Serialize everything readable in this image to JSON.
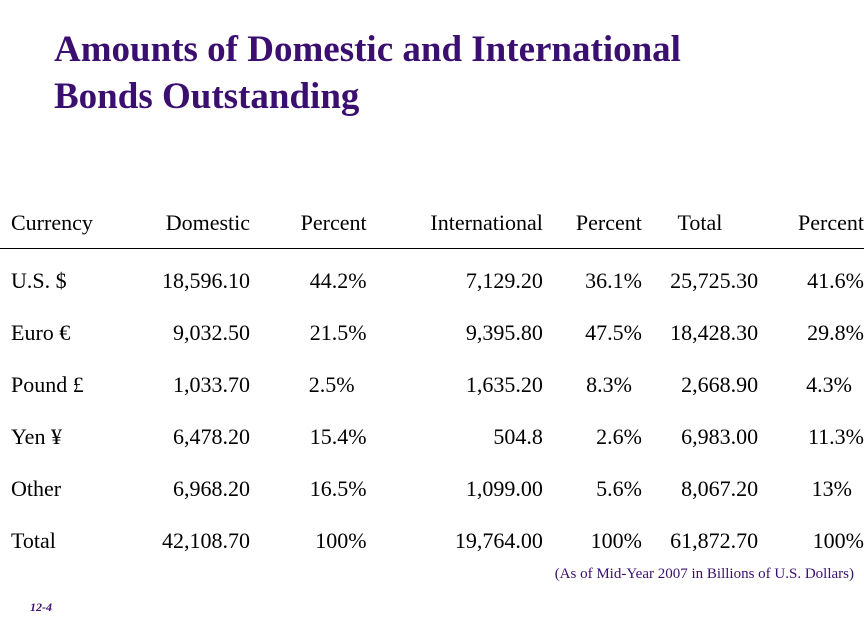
{
  "slide": {
    "title_line1": "Amounts of Domestic and International",
    "title_line2": "Bonds Outstanding",
    "note": "(As of Mid-Year 2007 in Billions of U.S. Dollars)",
    "number": "12-4",
    "accent_color": "#3b0f70"
  },
  "table": {
    "headers": [
      "Currency",
      "Domestic",
      "Percent",
      "International",
      "Percent",
      "Total",
      "Percent"
    ],
    "rows": [
      [
        "U.S. $",
        "18,596.10",
        "44.2%",
        "7,129.20",
        "36.1%",
        "25,725.30",
        "41.6%"
      ],
      [
        "Euro €",
        "9,032.50",
        "21.5%",
        "9,395.80",
        "47.5%",
        "18,428.30",
        "29.8%"
      ],
      [
        "Pound £",
        "1,033.70",
        "2.5%",
        "1,635.20",
        "8.3%",
        "2,668.90",
        "4.3%"
      ],
      [
        "Yen ¥",
        "6,478.20",
        "15.4%",
        "504.8",
        "2.6%",
        "6,983.00",
        "11.3%"
      ],
      [
        "Other",
        "6,968.20",
        "16.5%",
        "1,099.00",
        "5.6%",
        "8,067.20",
        "13%"
      ],
      [
        "Total",
        "42,108.70",
        "100%",
        "19,764.00",
        "100%",
        "61,872.70",
        "100%"
      ]
    ]
  }
}
